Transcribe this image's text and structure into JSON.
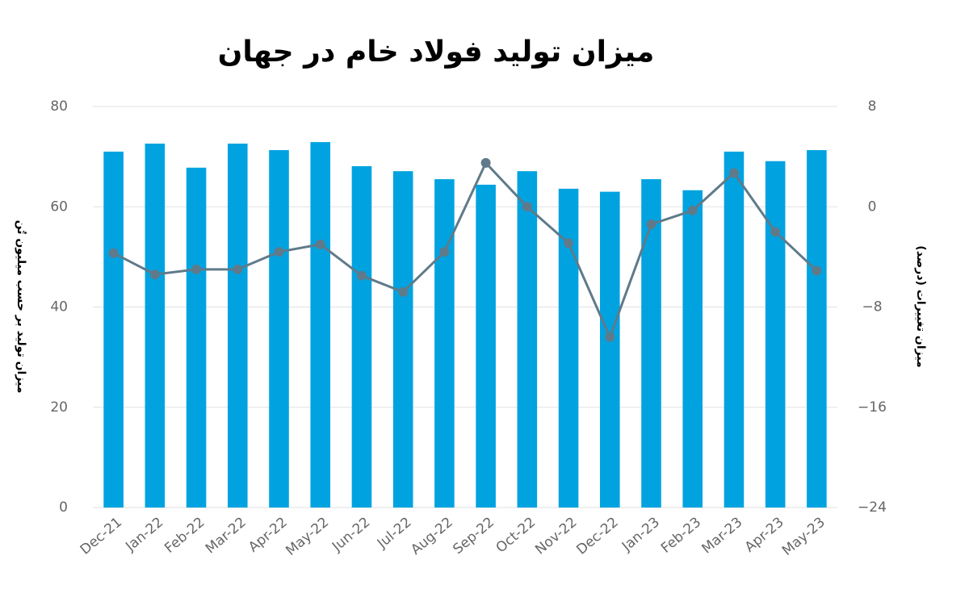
{
  "chart_data": {
    "type": "bar",
    "title": "میزان تولید فولاد خام در جهان",
    "y_label": "میزان تولید بر حسب میلیون تُن",
    "y2_label": "میزان تغییرات (درصد)",
    "categories": [
      "Dec-21",
      "Jan-22",
      "Feb-22",
      "Mar-22",
      "Apr-22",
      "May-22",
      "Jun-22",
      "Jul-22",
      "Aug-22",
      "Sep-22",
      "Oct-22",
      "Nov-22",
      "Dec-22",
      "Jan-23",
      "Feb-23",
      "Mar-23",
      "Apr-23",
      "May-23"
    ],
    "series": [
      {
        "type": "bar",
        "color": "#00a3e0",
        "values": [
          71.0,
          72.6,
          67.8,
          72.6,
          71.3,
          72.9,
          68.1,
          67.1,
          65.5,
          64.4,
          67.1,
          63.6,
          63.0,
          65.5,
          63.3,
          71.0,
          69.1,
          71.3
        ]
      },
      {
        "type": "line",
        "axis": "y2",
        "color": "#5f7a8a",
        "values": [
          -3.7,
          -5.4,
          -5.0,
          -5.0,
          -3.6,
          -3.0,
          -5.5,
          -6.8,
          -3.6,
          3.5,
          0,
          -2.9,
          -10.4,
          -1.4,
          -0.3,
          2.7,
          -2.0,
          -5.1
        ]
      }
    ],
    "ylim": [
      0,
      80
    ],
    "yticks": [
      0,
      20,
      40,
      60,
      80
    ],
    "y2lim": [
      -24,
      8
    ],
    "y2ticks": [
      {
        "value": -24,
        "label": "−24"
      },
      {
        "value": -16,
        "label": "−16"
      },
      {
        "value": -8,
        "label": "−8"
      },
      0,
      8
    ],
    "grid": true
  }
}
